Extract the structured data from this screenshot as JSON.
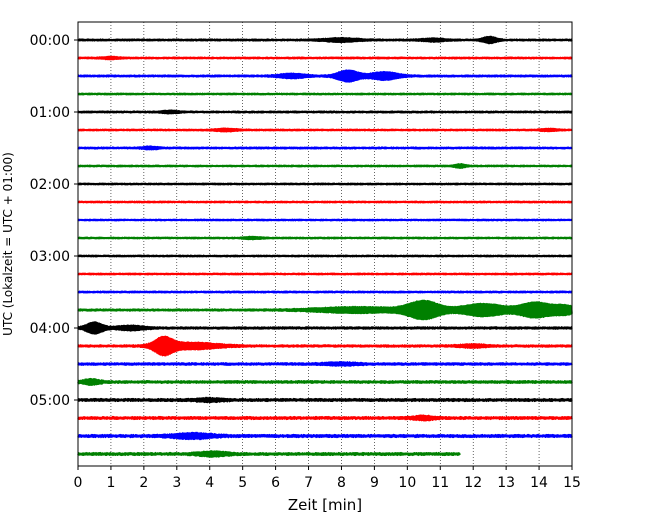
{
  "chart_data": {
    "type": "line",
    "title": "",
    "xlabel": "Zeit  [min]",
    "ylabel": "UTC (Lokalzeit = UTC + 01:00)",
    "xlim": [
      0,
      15
    ],
    "x_ticks": [
      0,
      1,
      2,
      3,
      4,
      5,
      6,
      7,
      8,
      9,
      10,
      11,
      12,
      13,
      14,
      15
    ],
    "ylim_minutes": [
      0,
      360
    ],
    "y_ticks": [
      {
        "minute": 0,
        "label": "00:00"
      },
      {
        "minute": 60,
        "label": "01:00"
      },
      {
        "minute": 120,
        "label": "02:00"
      },
      {
        "minute": 180,
        "label": "03:00"
      },
      {
        "minute": 240,
        "label": "04:00"
      },
      {
        "minute": 300,
        "label": "05:00"
      }
    ],
    "grid": "x-dotted",
    "trace_interval_minutes": 15,
    "trace_color_cycle": [
      "#000000",
      "#ff0000",
      "#0000ff",
      "#008000"
    ],
    "traces": [
      {
        "start": "00:00",
        "end_min": 15,
        "base_amp": 0.18,
        "events": [
          {
            "t": 8.0,
            "amp": 0.5,
            "width": 0.6
          },
          {
            "t": 10.8,
            "amp": 0.4,
            "width": 0.4
          },
          {
            "t": 12.5,
            "amp": 0.9,
            "width": 0.25
          }
        ]
      },
      {
        "start": "00:15",
        "end_min": 15,
        "base_amp": 0.16,
        "events": [
          {
            "t": 1.0,
            "amp": 0.3,
            "width": 0.3
          }
        ]
      },
      {
        "start": "00:30",
        "end_min": 15,
        "base_amp": 0.18,
        "events": [
          {
            "t": 6.5,
            "amp": 0.6,
            "width": 0.5
          },
          {
            "t": 8.2,
            "amp": 1.6,
            "width": 0.4
          },
          {
            "t": 9.3,
            "amp": 1.1,
            "width": 0.5
          }
        ]
      },
      {
        "start": "00:45",
        "end_min": 15,
        "base_amp": 0.15,
        "events": []
      },
      {
        "start": "01:00",
        "end_min": 15,
        "base_amp": 0.17,
        "events": [
          {
            "t": 2.8,
            "amp": 0.35,
            "width": 0.3
          }
        ]
      },
      {
        "start": "01:15",
        "end_min": 15,
        "base_amp": 0.15,
        "events": [
          {
            "t": 4.5,
            "amp": 0.35,
            "width": 0.4
          },
          {
            "t": 14.3,
            "amp": 0.3,
            "width": 0.3
          }
        ]
      },
      {
        "start": "01:30",
        "end_min": 15,
        "base_amp": 0.17,
        "events": [
          {
            "t": 2.2,
            "amp": 0.35,
            "width": 0.3
          }
        ]
      },
      {
        "start": "01:45",
        "end_min": 15,
        "base_amp": 0.15,
        "events": [
          {
            "t": 11.6,
            "amp": 0.5,
            "width": 0.2
          }
        ]
      },
      {
        "start": "02:00",
        "end_min": 15,
        "base_amp": 0.15,
        "events": []
      },
      {
        "start": "02:15",
        "end_min": 15,
        "base_amp": 0.15,
        "events": []
      },
      {
        "start": "02:30",
        "end_min": 15,
        "base_amp": 0.14,
        "events": []
      },
      {
        "start": "02:45",
        "end_min": 15,
        "base_amp": 0.15,
        "events": [
          {
            "t": 5.3,
            "amp": 0.3,
            "width": 0.3
          }
        ]
      },
      {
        "start": "03:00",
        "end_min": 15,
        "base_amp": 0.15,
        "events": []
      },
      {
        "start": "03:15",
        "end_min": 15,
        "base_amp": 0.15,
        "events": []
      },
      {
        "start": "03:30",
        "end_min": 15,
        "base_amp": 0.16,
        "events": []
      },
      {
        "start": "03:45",
        "end_min": 15,
        "base_amp": 0.2,
        "events": [
          {
            "t": 8.5,
            "amp": 0.8,
            "width": 1.5
          },
          {
            "t": 10.5,
            "amp": 2.6,
            "width": 0.6
          },
          {
            "t": 12.3,
            "amp": 1.8,
            "width": 0.8
          },
          {
            "t": 13.9,
            "amp": 2.2,
            "width": 0.6
          },
          {
            "t": 14.8,
            "amp": 1.2,
            "width": 0.4
          }
        ]
      },
      {
        "start": "04:00",
        "end_min": 15,
        "base_amp": 0.22,
        "events": [
          {
            "t": 0.5,
            "amp": 1.6,
            "width": 0.3
          },
          {
            "t": 1.6,
            "amp": 0.6,
            "width": 0.5
          }
        ]
      },
      {
        "start": "04:15",
        "end_min": 15,
        "base_amp": 0.22,
        "events": [
          {
            "t": 2.6,
            "amp": 2.4,
            "width": 0.35
          },
          {
            "t": 3.5,
            "amp": 0.9,
            "width": 0.9
          },
          {
            "t": 12.0,
            "amp": 0.4,
            "width": 0.5
          }
        ]
      },
      {
        "start": "04:30",
        "end_min": 15,
        "base_amp": 0.24,
        "events": [
          {
            "t": 8.0,
            "amp": 0.35,
            "width": 0.6
          }
        ]
      },
      {
        "start": "04:45",
        "end_min": 15,
        "base_amp": 0.26,
        "events": [
          {
            "t": 0.4,
            "amp": 0.7,
            "width": 0.3
          }
        ]
      },
      {
        "start": "05:00",
        "end_min": 15,
        "base_amp": 0.28,
        "events": [
          {
            "t": 4.0,
            "amp": 0.4,
            "width": 0.5
          }
        ]
      },
      {
        "start": "05:15",
        "end_min": 15,
        "base_amp": 0.28,
        "events": [
          {
            "t": 10.5,
            "amp": 0.5,
            "width": 0.4
          }
        ]
      },
      {
        "start": "05:30",
        "end_min": 15,
        "base_amp": 0.3,
        "events": [
          {
            "t": 3.5,
            "amp": 0.7,
            "width": 0.7
          }
        ]
      },
      {
        "start": "05:45",
        "end_min": 11.6,
        "base_amp": 0.28,
        "events": [
          {
            "t": 4.1,
            "amp": 0.6,
            "width": 0.5
          }
        ]
      }
    ]
  }
}
